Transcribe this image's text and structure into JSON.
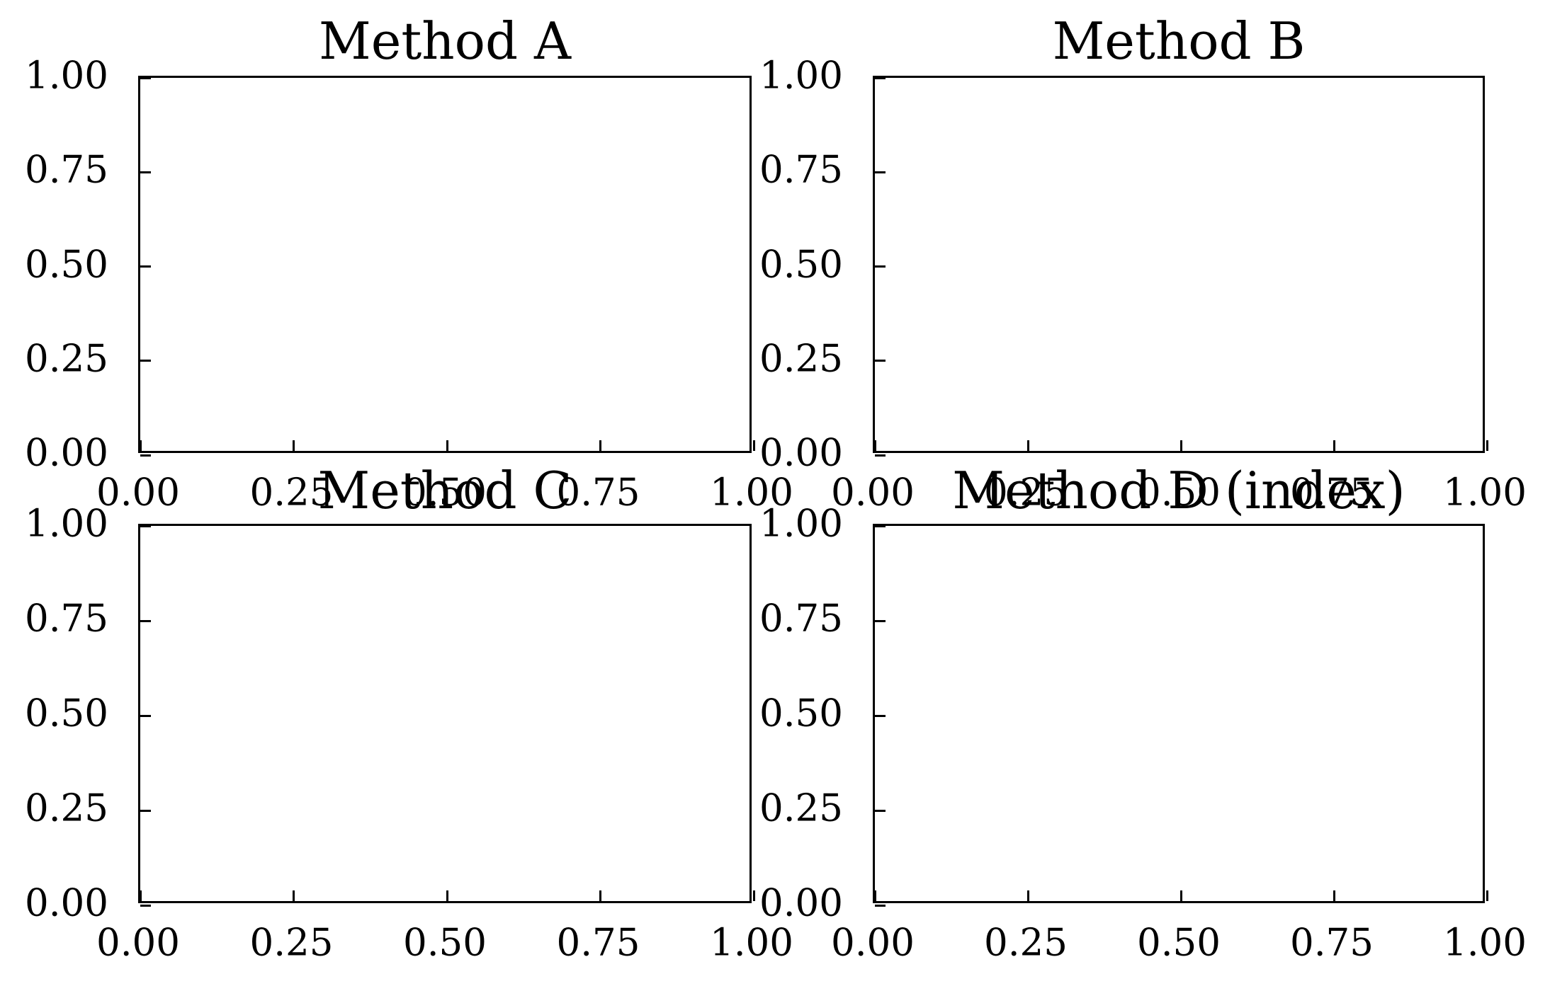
{
  "figure": {
    "background": "#ffffff",
    "text_color": "#000000",
    "spine_color": "#000000",
    "tick_direction": "in"
  },
  "chart_data": [
    {
      "type": "line",
      "title": "Method A",
      "xlabel": "",
      "ylabel": "",
      "xlim": [
        0,
        1
      ],
      "ylim": [
        0,
        1
      ],
      "xticks": [
        0,
        0.25,
        0.5,
        0.75,
        1
      ],
      "xtick_labels": [
        "0.00",
        "0.25",
        "0.50",
        "0.75",
        "1.00"
      ],
      "yticks": [
        0,
        0.25,
        0.5,
        0.75,
        1
      ],
      "ytick_labels": [
        "1.00",
        "0.75",
        "0.50",
        "0.25",
        "0.00"
      ],
      "series": [],
      "grid": false,
      "legend": false
    },
    {
      "type": "line",
      "title": "Method B",
      "xlabel": "",
      "ylabel": "",
      "xlim": [
        0,
        1
      ],
      "ylim": [
        0,
        1
      ],
      "xticks": [
        0,
        0.25,
        0.5,
        0.75,
        1
      ],
      "xtick_labels": [
        "0.00",
        "0.25",
        "0.50",
        "0.75",
        "1.00"
      ],
      "yticks": [
        0,
        0.25,
        0.5,
        0.75,
        1
      ],
      "ytick_labels": [
        "1.00",
        "0.75",
        "0.50",
        "0.25",
        "0.00"
      ],
      "series": [],
      "grid": false,
      "legend": false
    },
    {
      "type": "line",
      "title": "Method C",
      "xlabel": "",
      "ylabel": "",
      "xlim": [
        0,
        1
      ],
      "ylim": [
        0,
        1
      ],
      "xticks": [
        0,
        0.25,
        0.5,
        0.75,
        1
      ],
      "xtick_labels": [
        "0.00",
        "0.25",
        "0.50",
        "0.75",
        "1.00"
      ],
      "yticks": [
        0,
        0.25,
        0.5,
        0.75,
        1
      ],
      "ytick_labels": [
        "1.00",
        "0.75",
        "0.50",
        "0.25",
        "0.00"
      ],
      "series": [],
      "grid": false,
      "legend": false
    },
    {
      "type": "line",
      "title": "Method D (index)",
      "xlabel": "",
      "ylabel": "",
      "xlim": [
        0,
        1
      ],
      "ylim": [
        0,
        1
      ],
      "xticks": [
        0,
        0.25,
        0.5,
        0.75,
        1
      ],
      "xtick_labels": [
        "0.00",
        "0.25",
        "0.50",
        "0.75",
        "1.00"
      ],
      "yticks": [
        0,
        0.25,
        0.5,
        0.75,
        1
      ],
      "ytick_labels": [
        "1.00",
        "0.75",
        "0.50",
        "0.25",
        "0.00"
      ],
      "series": [],
      "grid": false,
      "legend": false
    }
  ]
}
